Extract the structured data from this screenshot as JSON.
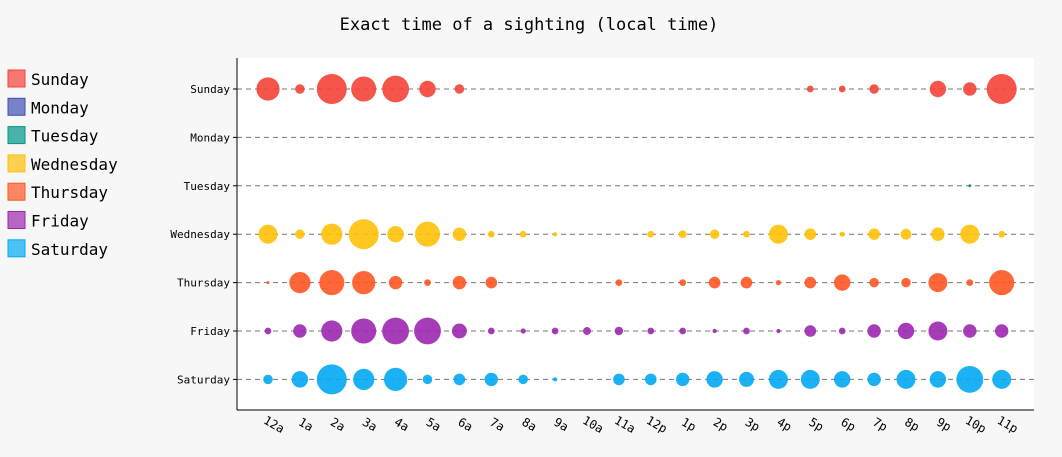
{
  "chart_data": {
    "type": "scatter",
    "title": "Exact time of a sighting (local time)",
    "x": [
      "12a",
      "1a",
      "2a",
      "3a",
      "4a",
      "5a",
      "6a",
      "7a",
      "8a",
      "9a",
      "10a",
      "11a",
      "12p",
      "1p",
      "2p",
      "3p",
      "4p",
      "5p",
      "6p",
      "7p",
      "8p",
      "9p",
      "10p",
      "11p"
    ],
    "categories": [
      "Sunday",
      "Monday",
      "Tuesday",
      "Wednesday",
      "Thursday",
      "Friday",
      "Saturday"
    ],
    "legend_position": "left",
    "grid": "dashed horizontal lines per category",
    "encoding": "dot size proportional to sighting count",
    "series": [
      {
        "name": "Sunday",
        "color": "#f44336",
        "values": [
          6,
          1,
          10,
          7,
          8,
          3,
          1,
          0,
          0,
          0,
          0,
          0,
          0,
          0,
          0,
          0,
          0,
          0.5,
          0.5,
          1,
          0,
          3,
          2,
          10
        ]
      },
      {
        "name": "Monday",
        "color": "#3f51b5",
        "values": [
          0,
          0,
          0,
          0,
          0,
          0,
          0,
          0,
          0,
          0,
          0,
          0,
          0,
          0,
          0,
          0,
          0,
          0,
          0,
          0,
          0,
          0,
          0,
          0
        ]
      },
      {
        "name": "Tuesday",
        "color": "#009688",
        "values": [
          0,
          0,
          0,
          0,
          0,
          0,
          0,
          0,
          0,
          0,
          0,
          0,
          0,
          0,
          0,
          0,
          0,
          0,
          0,
          0,
          0,
          0,
          0.1,
          0
        ]
      },
      {
        "name": "Wednesday",
        "color": "#ffc107",
        "values": [
          4,
          1,
          5,
          10,
          3,
          7,
          2,
          0.5,
          0.5,
          0.2,
          0,
          0,
          0.5,
          0.7,
          1,
          0.5,
          4,
          1.5,
          0.3,
          1.5,
          1.3,
          2,
          4,
          0.5
        ]
      },
      {
        "name": "Thursday",
        "color": "#ff5722",
        "values": [
          0.1,
          5,
          7,
          6,
          2,
          0.5,
          2,
          1.5,
          0,
          0,
          0,
          0.5,
          0,
          0.5,
          1.5,
          1.5,
          0.3,
          1.5,
          3,
          1,
          1,
          4,
          0.5,
          7
        ]
      },
      {
        "name": "Friday",
        "color": "#9c27b0",
        "values": [
          0.5,
          2,
          5,
          7,
          8,
          8,
          2.5,
          0.5,
          0.3,
          0.5,
          0.7,
          0.8,
          0.5,
          0.5,
          0.2,
          0.5,
          0.2,
          1.5,
          0.5,
          2,
          3,
          4,
          2,
          2
        ]
      },
      {
        "name": "Saturday",
        "color": "#03a9f4",
        "values": [
          1,
          3,
          10,
          5,
          6,
          1,
          1.5,
          2,
          1,
          0.2,
          0,
          1.5,
          1.5,
          2,
          3,
          2.5,
          4,
          4,
          3,
          2,
          4,
          3,
          8,
          4
        ]
      }
    ]
  },
  "legend": {
    "items": [
      {
        "label": "Sunday",
        "color": "#f44336"
      },
      {
        "label": "Monday",
        "color": "#3f51b5"
      },
      {
        "label": "Tuesday",
        "color": "#009688"
      },
      {
        "label": "Wednesday",
        "color": "#ffc107"
      },
      {
        "label": "Thursday",
        "color": "#ff5722"
      },
      {
        "label": "Friday",
        "color": "#9c27b0"
      },
      {
        "label": "Saturday",
        "color": "#03a9f4"
      }
    ]
  }
}
